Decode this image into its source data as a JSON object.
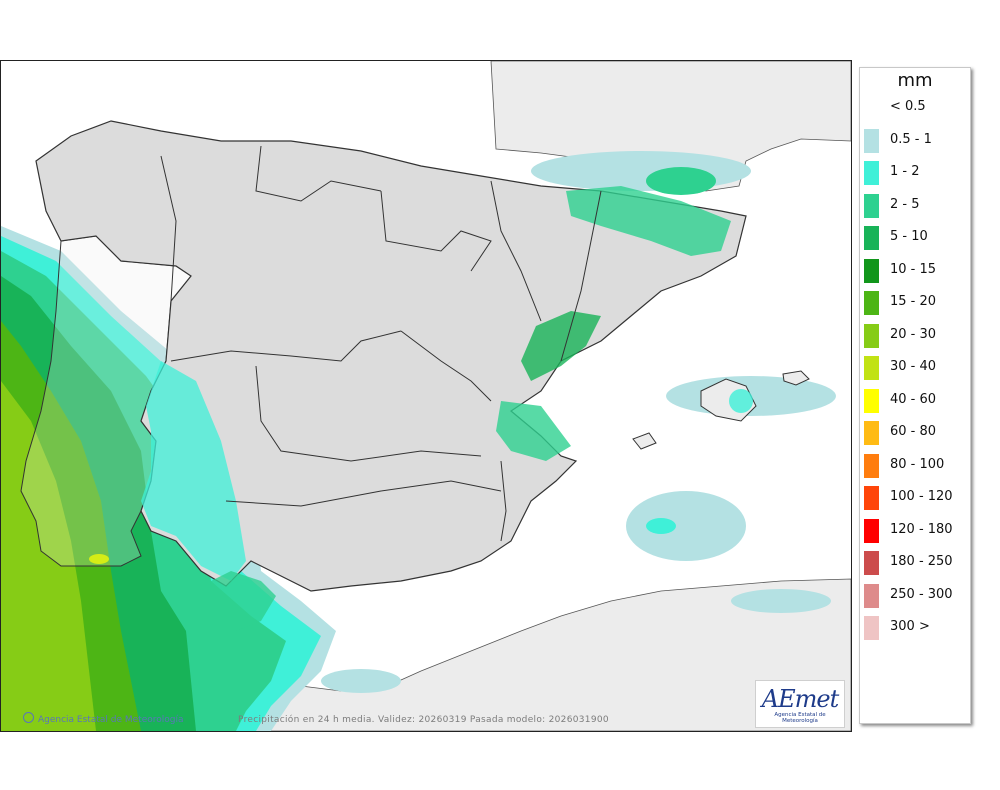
{
  "map": {
    "caption": "Precipitación en 24 h media. Validez: 20260319 Pasada modelo: 2026031900",
    "credit": "Agencia Estatal de Meteorología",
    "logo": {
      "word": "AEmet",
      "subtitle": "Agencia Estatal de Meteorología"
    }
  },
  "legend": {
    "unit": "mm",
    "items": [
      {
        "label": "< 0.5",
        "color": ""
      },
      {
        "label": "0.5 - 1",
        "color": "#b4e1e3"
      },
      {
        "label": "1 - 2",
        "color": "#3ff0d8"
      },
      {
        "label": "2 - 5",
        "color": "#2ed190"
      },
      {
        "label": "5 - 10",
        "color": "#18b358"
      },
      {
        "label": "10 - 15",
        "color": "#11961b"
      },
      {
        "label": "15 - 20",
        "color": "#4db515"
      },
      {
        "label": "20 - 30",
        "color": "#86cc16"
      },
      {
        "label": "30 - 40",
        "color": "#c1e214"
      },
      {
        "label": "40 - 60",
        "color": "#ffff00"
      },
      {
        "label": "60 - 80",
        "color": "#ffbb14"
      },
      {
        "label": "80 - 100",
        "color": "#ff7d0e"
      },
      {
        "label": "100 - 120",
        "color": "#ff4509"
      },
      {
        "label": "120 - 180",
        "color": "#ff0000"
      },
      {
        "label": "180 - 250",
        "color": "#cc4c4c"
      },
      {
        "label": "250 - 300",
        "color": "#de8b8b"
      },
      {
        "label": "300 >",
        "color": "#efc4c4"
      }
    ]
  },
  "colors": {
    "land_foreign": "#ececec",
    "land_spain": "#dcdcdc",
    "sea": "#ffffff",
    "borders": "#333333"
  }
}
